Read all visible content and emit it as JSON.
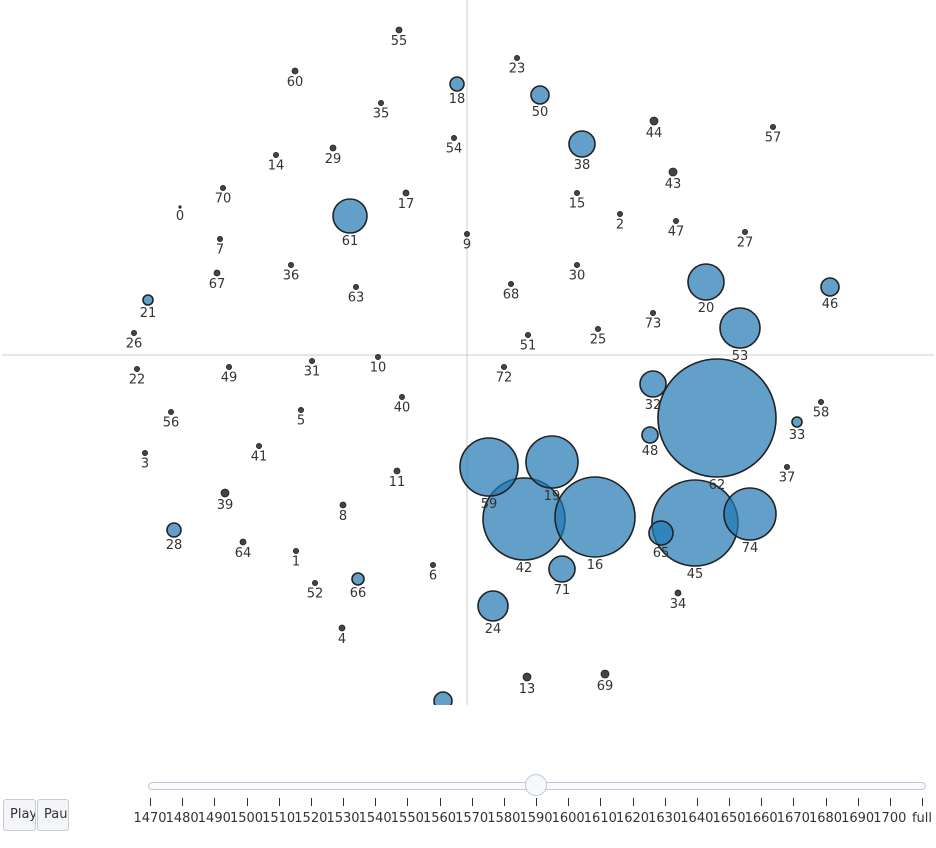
{
  "chart_data": {
    "type": "scatter",
    "title": "",
    "xlabel": "",
    "ylabel": "",
    "grid": false,
    "zeroline_visible": true,
    "color": "#1f77b4",
    "points": [
      {
        "label": "0",
        "x": -287,
        "y": 148,
        "size": 0
      },
      {
        "label": "1",
        "x": -171,
        "y": -196,
        "size": 2
      },
      {
        "label": "2",
        "x": 153,
        "y": 141,
        "size": 1
      },
      {
        "label": "3",
        "x": -322,
        "y": -98,
        "size": 2
      },
      {
        "label": "4",
        "x": -125,
        "y": -273,
        "size": 3
      },
      {
        "label": "5",
        "x": -166,
        "y": -55,
        "size": 1
      },
      {
        "label": "6",
        "x": -34,
        "y": -210,
        "size": 2
      },
      {
        "label": "7",
        "x": -247,
        "y": 116,
        "size": 2
      },
      {
        "label": "8",
        "x": -124,
        "y": -150,
        "size": 3
      },
      {
        "label": "9",
        "x": 0,
        "y": 121,
        "size": 1
      },
      {
        "label": "10",
        "x": -89,
        "y": -2,
        "size": 2
      },
      {
        "label": "11",
        "x": -70,
        "y": -116,
        "size": 3
      },
      {
        "label": "13",
        "x": 60,
        "y": -322,
        "size": 4
      },
      {
        "label": "14",
        "x": -191,
        "y": 200,
        "size": 1
      },
      {
        "label": "15",
        "x": 110,
        "y": 162,
        "size": 1
      },
      {
        "label": "16",
        "x": 128,
        "y": -162,
        "size": 40
      },
      {
        "label": "17",
        "x": -61,
        "y": 162,
        "size": 3
      },
      {
        "label": "18",
        "x": -10,
        "y": 271,
        "size": 7
      },
      {
        "label": "19",
        "x": 85,
        "y": -107,
        "size": 26
      },
      {
        "label": "20",
        "x": 239,
        "y": 73,
        "size": 18
      },
      {
        "label": "21",
        "x": -319,
        "y": 55,
        "size": 5
      },
      {
        "label": "22",
        "x": -330,
        "y": -14,
        "size": 1
      },
      {
        "label": "23",
        "x": 50,
        "y": 297,
        "size": 2
      },
      {
        "label": "24",
        "x": 26,
        "y": -251,
        "size": 15
      },
      {
        "label": "25",
        "x": 131,
        "y": 26,
        "size": 2
      },
      {
        "label": "26",
        "x": -333,
        "y": 22,
        "size": 1
      },
      {
        "label": "27",
        "x": 278,
        "y": 123,
        "size": 2
      },
      {
        "label": "28",
        "x": -293,
        "y": -175,
        "size": 7
      },
      {
        "label": "29",
        "x": -134,
        "y": 207,
        "size": 3
      },
      {
        "label": "30",
        "x": 110,
        "y": 90,
        "size": 1
      },
      {
        "label": "31",
        "x": -155,
        "y": -6,
        "size": 1
      },
      {
        "label": "32",
        "x": 186,
        "y": -29,
        "size": 13
      },
      {
        "label": "33",
        "x": 330,
        "y": -67,
        "size": 5
      },
      {
        "label": "34",
        "x": 211,
        "y": -238,
        "size": 3
      },
      {
        "label": "35",
        "x": -86,
        "y": 252,
        "size": 2
      },
      {
        "label": "36",
        "x": -176,
        "y": 90,
        "size": 2
      },
      {
        "label": "37",
        "x": 320,
        "y": -112,
        "size": 2
      },
      {
        "label": "38",
        "x": 115,
        "y": 211,
        "size": 13
      },
      {
        "label": "39",
        "x": -242,
        "y": -138,
        "size": 4
      },
      {
        "label": "40",
        "x": -65,
        "y": -42,
        "size": 1
      },
      {
        "label": "41",
        "x": -208,
        "y": -91,
        "size": 2
      },
      {
        "label": "42",
        "x": 57,
        "y": -164,
        "size": 41
      },
      {
        "label": "43",
        "x": 206,
        "y": 183,
        "size": 4
      },
      {
        "label": "44",
        "x": 187,
        "y": 234,
        "size": 4
      },
      {
        "label": "45",
        "x": 228,
        "y": -168,
        "size": 43
      },
      {
        "label": "46",
        "x": 363,
        "y": 68,
        "size": 9
      },
      {
        "label": "47",
        "x": 209,
        "y": 134,
        "size": 1
      },
      {
        "label": "48",
        "x": 183,
        "y": -80,
        "size": 8
      },
      {
        "label": "49",
        "x": -238,
        "y": -12,
        "size": 2
      },
      {
        "label": "50",
        "x": 73,
        "y": 260,
        "size": 9
      },
      {
        "label": "51",
        "x": 61,
        "y": 20,
        "size": 1
      },
      {
        "label": "52",
        "x": -152,
        "y": -228,
        "size": 2
      },
      {
        "label": "53",
        "x": 273,
        "y": 27,
        "size": 20
      },
      {
        "label": "54",
        "x": -13,
        "y": 217,
        "size": 1
      },
      {
        "label": "55",
        "x": -68,
        "y": 325,
        "size": 3
      },
      {
        "label": "56",
        "x": -296,
        "y": -57,
        "size": 1
      },
      {
        "label": "57",
        "x": 306,
        "y": 228,
        "size": 1
      },
      {
        "label": "58",
        "x": 354,
        "y": -47,
        "size": 1
      },
      {
        "label": "59",
        "x": 22,
        "y": -112,
        "size": 29
      },
      {
        "label": "60",
        "x": -172,
        "y": 284,
        "size": 3
      },
      {
        "label": "61",
        "x": -117,
        "y": 139,
        "size": 17
      },
      {
        "label": "62",
        "x": 250,
        "y": -63,
        "size": 59
      },
      {
        "label": "63",
        "x": -111,
        "y": 68,
        "size": 2
      },
      {
        "label": "64",
        "x": -224,
        "y": -187,
        "size": 3
      },
      {
        "label": "65",
        "x": 194,
        "y": -178,
        "size": 12
      },
      {
        "label": "66",
        "x": -109,
        "y": -224,
        "size": 6
      },
      {
        "label": "67",
        "x": -250,
        "y": 82,
        "size": 3
      },
      {
        "label": "68",
        "x": 44,
        "y": 71,
        "size": 2
      },
      {
        "label": "69",
        "x": 138,
        "y": -319,
        "size": 4
      },
      {
        "label": "70",
        "x": -244,
        "y": 167,
        "size": 2
      },
      {
        "label": "71",
        "x": 95,
        "y": -214,
        "size": 13
      },
      {
        "label": "72",
        "x": 37,
        "y": -12,
        "size": 1
      },
      {
        "label": "73",
        "x": 186,
        "y": 42,
        "size": 2
      },
      {
        "label": "74",
        "x": 283,
        "y": -159,
        "size": 26
      },
      {
        "label": "",
        "x": -24,
        "y": -346,
        "size": 9
      }
    ]
  },
  "slider": {
    "current": "1590",
    "steps": [
      "1470",
      "1480",
      "1490",
      "1500",
      "1510",
      "1520",
      "1530",
      "1540",
      "1550",
      "1560",
      "1570",
      "1580",
      "1590",
      "1600",
      "1610",
      "1620",
      "1630",
      "1640",
      "1650",
      "1660",
      "1670",
      "1680",
      "1690",
      "1700",
      "full"
    ]
  },
  "controls": {
    "play_label": "Play",
    "pause_label": "Pause"
  }
}
